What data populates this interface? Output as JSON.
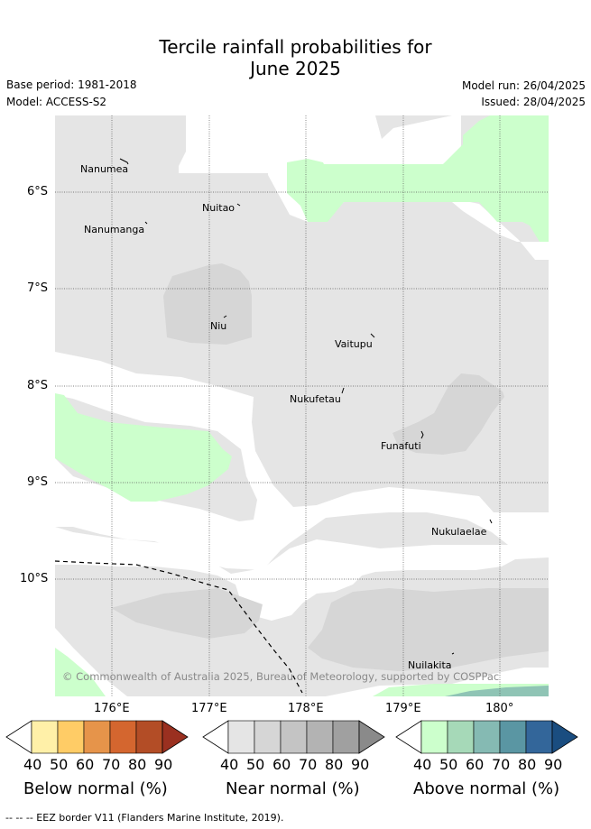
{
  "header": {
    "title_line1": "Tercile rainfall probabilities for",
    "title_line2": "June 2025",
    "base_period": "Base period: 1981-2018",
    "model": "Model: ACCESS-S2",
    "model_run": "Model run: 26/04/2025",
    "issued": "Issued: 28/04/2025"
  },
  "map": {
    "lat_labels": [
      "6°S",
      "7°S",
      "8°S",
      "9°S",
      "10°S"
    ],
    "lon_labels": [
      "176°E",
      "177°E",
      "178°E",
      "179°E",
      "180°"
    ],
    "islands": [
      "Nanumea",
      "Nuitao",
      "Nanumanga",
      "Niu",
      "Vaitupu",
      "Nukufetau",
      "Funafuti",
      "Nukulaelae",
      "Nuilakita"
    ],
    "copyright": "© Commonwealth of Australia 2025, Bureau of Meteorology, supported by COSPPac",
    "colors": {
      "near_40": "#e5e5e5",
      "near_50": "#d6d6d6",
      "above_40": "#ccffcc",
      "above_60": "#8fc4b5",
      "eez": "#000000"
    }
  },
  "legend": {
    "below": {
      "title": "Below normal (%)",
      "ticks": [
        "40",
        "50",
        "60",
        "70",
        "80",
        "90"
      ],
      "colors": [
        "#ffffff",
        "#fff0a8",
        "#ffcc66",
        "#e6944a",
        "#d4662f",
        "#b34d26",
        "#9a3020"
      ]
    },
    "near": {
      "title": "Near normal (%)",
      "ticks": [
        "40",
        "50",
        "60",
        "70",
        "80",
        "90"
      ],
      "colors": [
        "#ffffff",
        "#e5e5e5",
        "#d6d6d6",
        "#c4c4c4",
        "#b3b3b3",
        "#a0a0a0",
        "#8a8a8a"
      ]
    },
    "above": {
      "title": "Above normal (%)",
      "ticks": [
        "40",
        "50",
        "60",
        "70",
        "80",
        "90"
      ],
      "colors": [
        "#ffffff",
        "#ccffcc",
        "#a6d9b8",
        "#85bab3",
        "#5a96a3",
        "#33669a",
        "#1a4d80"
      ]
    }
  },
  "footer": {
    "eez_note": "--  --  -- EEZ border V11 (Flanders Marine Institute, 2019)."
  }
}
